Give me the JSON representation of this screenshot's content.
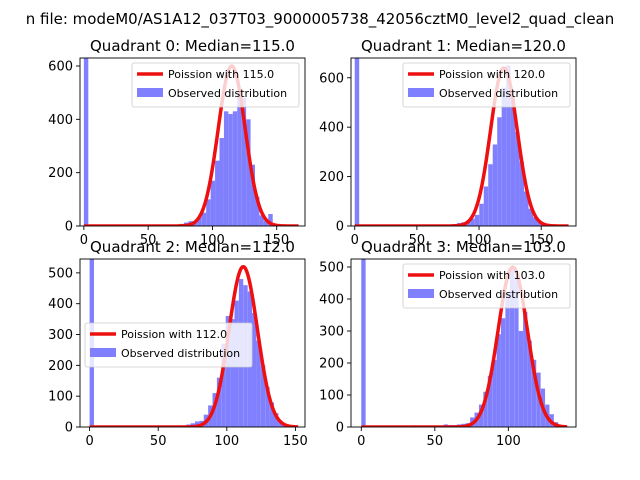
{
  "figure": {
    "suptitle": "n file: modeM0/AS1A12_037T03_9000005738_42056cztM0_level2_quad_clean"
  },
  "colors": {
    "bars": "#8080ff",
    "curve": "#ee1010",
    "axis": "#000000",
    "background": "#ffffff"
  },
  "chart_data": [
    {
      "type": "bar",
      "title": "Quadrant 0: Median=115.0",
      "xlabel": "",
      "ylabel": "",
      "xlim": [
        -3,
        172
      ],
      "ylim": [
        0,
        630
      ],
      "xticks": [
        0,
        50,
        100,
        150
      ],
      "yticks": [
        0,
        200,
        400,
        600
      ],
      "legend_placement": "top-right",
      "legend": [
        "Poission with 115.0",
        "Observed distribution"
      ],
      "poisson_mean": 115.0,
      "poisson_peak": 600,
      "curve_x_range": [
        0,
        167
      ],
      "histogram": {
        "bin_width": 3.45,
        "bins": [
          {
            "x": 0,
            "count": 630
          },
          {
            "x": 3.45,
            "count": 3
          },
          {
            "x": 6.9,
            "count": 3
          },
          {
            "x": 10.35,
            "count": 2
          },
          {
            "x": 71,
            "count": 5
          },
          {
            "x": 74.45,
            "count": 8
          },
          {
            "x": 77.9,
            "count": 13
          },
          {
            "x": 81.35,
            "count": 18
          },
          {
            "x": 84.8,
            "count": 15
          },
          {
            "x": 88.25,
            "count": 35
          },
          {
            "x": 91.7,
            "count": 50
          },
          {
            "x": 95.15,
            "count": 100
          },
          {
            "x": 98.6,
            "count": 170
          },
          {
            "x": 102.05,
            "count": 245
          },
          {
            "x": 105.5,
            "count": 330
          },
          {
            "x": 108.95,
            "count": 430
          },
          {
            "x": 112.4,
            "count": 420
          },
          {
            "x": 115.85,
            "count": 430
          },
          {
            "x": 119.3,
            "count": 510
          },
          {
            "x": 122.75,
            "count": 480
          },
          {
            "x": 126.2,
            "count": 400
          },
          {
            "x": 129.65,
            "count": 230
          },
          {
            "x": 133.1,
            "count": 110
          },
          {
            "x": 136.55,
            "count": 40
          },
          {
            "x": 140,
            "count": 20
          },
          {
            "x": 143.45,
            "count": 45
          },
          {
            "x": 146.9,
            "count": 5
          },
          {
            "x": 150.35,
            "count": 3
          }
        ]
      }
    },
    {
      "type": "bar",
      "title": "Quadrant 1: Median=120.0",
      "xlabel": "",
      "ylabel": "",
      "xlim": [
        -3,
        178
      ],
      "ylim": [
        0,
        680
      ],
      "xticks": [
        0,
        50,
        100,
        150
      ],
      "yticks": [
        0,
        200,
        400,
        600
      ],
      "legend_placement": "top-right",
      "legend": [
        "Poission with 120.0",
        "Observed distribution"
      ],
      "poisson_mean": 120.0,
      "poisson_peak": 640,
      "curve_x_range": [
        0,
        172
      ],
      "histogram": {
        "bin_width": 3.6,
        "bins": [
          {
            "x": 0,
            "count": 680
          },
          {
            "x": 3.6,
            "count": 3
          },
          {
            "x": 7.2,
            "count": 2
          },
          {
            "x": 75,
            "count": 5
          },
          {
            "x": 78.6,
            "count": 8
          },
          {
            "x": 82.2,
            "count": 12
          },
          {
            "x": 85.8,
            "count": 15
          },
          {
            "x": 89.4,
            "count": 20
          },
          {
            "x": 93,
            "count": 30
          },
          {
            "x": 96.6,
            "count": 45
          },
          {
            "x": 100.2,
            "count": 90
          },
          {
            "x": 103.8,
            "count": 160
          },
          {
            "x": 107.4,
            "count": 250
          },
          {
            "x": 111,
            "count": 330
          },
          {
            "x": 114.6,
            "count": 440
          },
          {
            "x": 118.2,
            "count": 560
          },
          {
            "x": 121.8,
            "count": 650
          },
          {
            "x": 125.4,
            "count": 520
          },
          {
            "x": 129,
            "count": 380
          },
          {
            "x": 132.6,
            "count": 260
          },
          {
            "x": 136.2,
            "count": 140
          },
          {
            "x": 139.8,
            "count": 70
          },
          {
            "x": 143.4,
            "count": 35
          },
          {
            "x": 147,
            "count": 15
          },
          {
            "x": 150.6,
            "count": 8
          },
          {
            "x": 154.2,
            "count": 4
          }
        ]
      }
    },
    {
      "type": "bar",
      "title": "Quadrant 2: Median=112.0",
      "xlabel": "",
      "ylabel": "",
      "xlim": [
        -7,
        157
      ],
      "ylim": [
        0,
        545
      ],
      "xticks": [
        0,
        50,
        100,
        150
      ],
      "yticks": [
        0,
        100,
        200,
        300,
        400,
        500
      ],
      "legend_placement": "center-left",
      "legend": [
        "Poission with 112.0",
        "Observed distribution"
      ],
      "poisson_mean": 112.0,
      "poisson_peak": 520,
      "curve_x_range": [
        0,
        152
      ],
      "histogram": {
        "bin_width": 3.2,
        "bins": [
          {
            "x": 0,
            "count": 545
          },
          {
            "x": 3.2,
            "count": 2
          },
          {
            "x": 6.4,
            "count": 2
          },
          {
            "x": 64,
            "count": 3
          },
          {
            "x": 67.2,
            "count": 5
          },
          {
            "x": 70.4,
            "count": 8
          },
          {
            "x": 73.6,
            "count": 12
          },
          {
            "x": 76.8,
            "count": 18
          },
          {
            "x": 80,
            "count": 20
          },
          {
            "x": 83.2,
            "count": 40
          },
          {
            "x": 86.4,
            "count": 70
          },
          {
            "x": 89.6,
            "count": 110
          },
          {
            "x": 92.8,
            "count": 160
          },
          {
            "x": 96,
            "count": 270
          },
          {
            "x": 99.2,
            "count": 360
          },
          {
            "x": 102.4,
            "count": 350
          },
          {
            "x": 105.6,
            "count": 410
          },
          {
            "x": 108.8,
            "count": 480
          },
          {
            "x": 112,
            "count": 460
          },
          {
            "x": 115.2,
            "count": 440
          },
          {
            "x": 118.4,
            "count": 370
          },
          {
            "x": 121.6,
            "count": 280
          },
          {
            "x": 124.8,
            "count": 200
          },
          {
            "x": 128,
            "count": 130
          },
          {
            "x": 131.2,
            "count": 80
          },
          {
            "x": 134.4,
            "count": 45
          },
          {
            "x": 137.6,
            "count": 20
          },
          {
            "x": 140.8,
            "count": 10
          },
          {
            "x": 144,
            "count": 5
          }
        ]
      }
    },
    {
      "type": "bar",
      "title": "Quadrant 3: Median=103.0",
      "xlabel": "",
      "ylabel": "",
      "xlim": [
        -7,
        146
      ],
      "ylim": [
        0,
        525
      ],
      "xticks": [
        0,
        50,
        100
      ],
      "yticks": [
        0,
        100,
        200,
        300,
        400,
        500
      ],
      "legend_placement": "top-right",
      "legend": [
        "Poission with 103.0",
        "Observed distribution"
      ],
      "poisson_mean": 103.0,
      "poisson_peak": 500,
      "curve_x_range": [
        0,
        140
      ],
      "histogram": {
        "bin_width": 2.95,
        "bins": [
          {
            "x": 0,
            "count": 525
          },
          {
            "x": 2.95,
            "count": 2
          },
          {
            "x": 35,
            "count": 5
          },
          {
            "x": 47,
            "count": 3
          },
          {
            "x": 56,
            "count": 8
          },
          {
            "x": 59,
            "count": 6
          },
          {
            "x": 62,
            "count": 6
          },
          {
            "x": 65,
            "count": 8
          },
          {
            "x": 68,
            "count": 10
          },
          {
            "x": 71,
            "count": 12
          },
          {
            "x": 74,
            "count": 30
          },
          {
            "x": 77,
            "count": 45
          },
          {
            "x": 80,
            "count": 70
          },
          {
            "x": 83,
            "count": 110
          },
          {
            "x": 86,
            "count": 160
          },
          {
            "x": 89,
            "count": 210
          },
          {
            "x": 92,
            "count": 290
          },
          {
            "x": 95,
            "count": 340
          },
          {
            "x": 98,
            "count": 420
          },
          {
            "x": 101,
            "count": 500
          },
          {
            "x": 104,
            "count": 470
          },
          {
            "x": 107,
            "count": 300
          },
          {
            "x": 110,
            "count": 360
          },
          {
            "x": 113,
            "count": 270
          },
          {
            "x": 116,
            "count": 210
          },
          {
            "x": 119,
            "count": 170
          },
          {
            "x": 122,
            "count": 120
          },
          {
            "x": 125,
            "count": 70
          },
          {
            "x": 128,
            "count": 40
          },
          {
            "x": 131,
            "count": 15
          }
        ]
      }
    }
  ]
}
